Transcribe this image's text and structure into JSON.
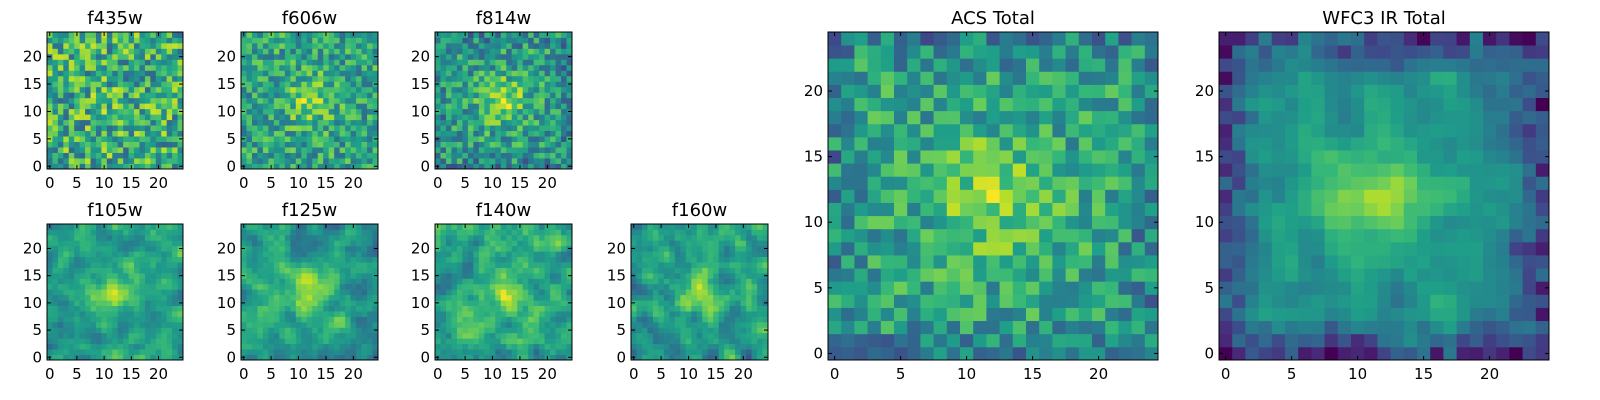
{
  "figure": {
    "description_free": true
  },
  "chart_data": [
    {
      "type": "heatmap",
      "title": "f435w",
      "x_ticks": [
        "0",
        "5",
        "10",
        "15",
        "20"
      ],
      "y_ticks": [
        "0",
        "5",
        "10",
        "15",
        "20"
      ],
      "grid_size": 25,
      "xlim": [
        -0.5,
        24.5
      ],
      "ylim": [
        -0.5,
        24.5
      ],
      "colormap": "viridis",
      "pattern": {
        "seed": 11,
        "amp": 0.05,
        "noise": 0.6,
        "mean": 0.62,
        "smooth": 0,
        "edge": 0
      }
    },
    {
      "type": "heatmap",
      "title": "f606w",
      "x_ticks": [
        "0",
        "5",
        "10",
        "15",
        "20"
      ],
      "y_ticks": [
        "0",
        "5",
        "10",
        "15",
        "20"
      ],
      "grid_size": 25,
      "xlim": [
        -0.5,
        24.5
      ],
      "ylim": [
        -0.5,
        24.5
      ],
      "colormap": "viridis",
      "pattern": {
        "seed": 23,
        "amp": 0.25,
        "noise": 0.45,
        "mean": 0.58,
        "smooth": 0,
        "edge": 0
      }
    },
    {
      "type": "heatmap",
      "title": "f814w",
      "x_ticks": [
        "0",
        "5",
        "10",
        "15",
        "20"
      ],
      "y_ticks": [
        "0",
        "5",
        "10",
        "15",
        "20"
      ],
      "grid_size": 25,
      "xlim": [
        -0.5,
        24.5
      ],
      "ylim": [
        -0.5,
        24.5
      ],
      "colormap": "viridis",
      "pattern": {
        "seed": 37,
        "amp": 0.3,
        "noise": 0.45,
        "mean": 0.55,
        "smooth": 0,
        "edge": 0.1
      }
    },
    {
      "type": "heatmap",
      "title": "f105w",
      "x_ticks": [
        "0",
        "5",
        "10",
        "15",
        "20"
      ],
      "y_ticks": [
        "0",
        "5",
        "10",
        "15",
        "20"
      ],
      "grid_size": 25,
      "xlim": [
        -0.5,
        24.5
      ],
      "ylim": [
        -0.5,
        24.5
      ],
      "colormap": "viridis",
      "pattern": {
        "seed": 41,
        "amp": 0.3,
        "noise": 0.4,
        "mean": 0.55,
        "smooth": 1,
        "edge": 0
      }
    },
    {
      "type": "heatmap",
      "title": "f125w",
      "x_ticks": [
        "0",
        "5",
        "10",
        "15",
        "20"
      ],
      "y_ticks": [
        "0",
        "5",
        "10",
        "15",
        "20"
      ],
      "grid_size": 25,
      "xlim": [
        -0.5,
        24.5
      ],
      "ylim": [
        -0.5,
        24.5
      ],
      "colormap": "viridis",
      "pattern": {
        "seed": 53,
        "amp": 0.3,
        "noise": 0.4,
        "mean": 0.55,
        "smooth": 1,
        "edge": 0
      }
    },
    {
      "type": "heatmap",
      "title": "f140w",
      "x_ticks": [
        "0",
        "5",
        "10",
        "15",
        "20"
      ],
      "y_ticks": [
        "0",
        "5",
        "10",
        "15",
        "20"
      ],
      "grid_size": 25,
      "xlim": [
        -0.5,
        24.5
      ],
      "ylim": [
        -0.5,
        24.5
      ],
      "colormap": "viridis",
      "pattern": {
        "seed": 67,
        "amp": 0.2,
        "noise": 0.45,
        "mean": 0.6,
        "smooth": 1,
        "edge": 0
      }
    },
    {
      "type": "heatmap",
      "title": "f160w",
      "x_ticks": [
        "0",
        "5",
        "10",
        "15",
        "20"
      ],
      "y_ticks": [
        "0",
        "5",
        "10",
        "15",
        "20"
      ],
      "grid_size": 25,
      "xlim": [
        -0.5,
        24.5
      ],
      "ylim": [
        -0.5,
        24.5
      ],
      "colormap": "viridis",
      "pattern": {
        "seed": 79,
        "amp": 0.3,
        "noise": 0.45,
        "mean": 0.55,
        "smooth": 1,
        "edge": 0
      }
    },
    {
      "type": "heatmap",
      "title": "ACS Total",
      "x_ticks": [
        "0",
        "5",
        "10",
        "15",
        "20"
      ],
      "y_ticks": [
        "0",
        "5",
        "10",
        "15",
        "20"
      ],
      "grid_size": 25,
      "xlim": [
        -0.5,
        24.5
      ],
      "ylim": [
        -0.5,
        24.5
      ],
      "colormap": "viridis",
      "pattern": {
        "seed": 97,
        "amp": 0.25,
        "noise": 0.4,
        "mean": 0.58,
        "smooth": 0,
        "edge": 0.15
      }
    },
    {
      "type": "heatmap",
      "title": "WFC3 IR Total",
      "x_ticks": [
        "0",
        "5",
        "10",
        "15",
        "20"
      ],
      "y_ticks": [
        "0",
        "5",
        "10",
        "15",
        "20"
      ],
      "grid_size": 25,
      "xlim": [
        -0.5,
        24.5
      ],
      "ylim": [
        -0.5,
        24.5
      ],
      "colormap": "viridis",
      "pattern": {
        "seed": 131,
        "amp": 0.35,
        "noise": 0.3,
        "mean": 0.5,
        "smooth": 1,
        "edge": 0.35
      }
    }
  ]
}
